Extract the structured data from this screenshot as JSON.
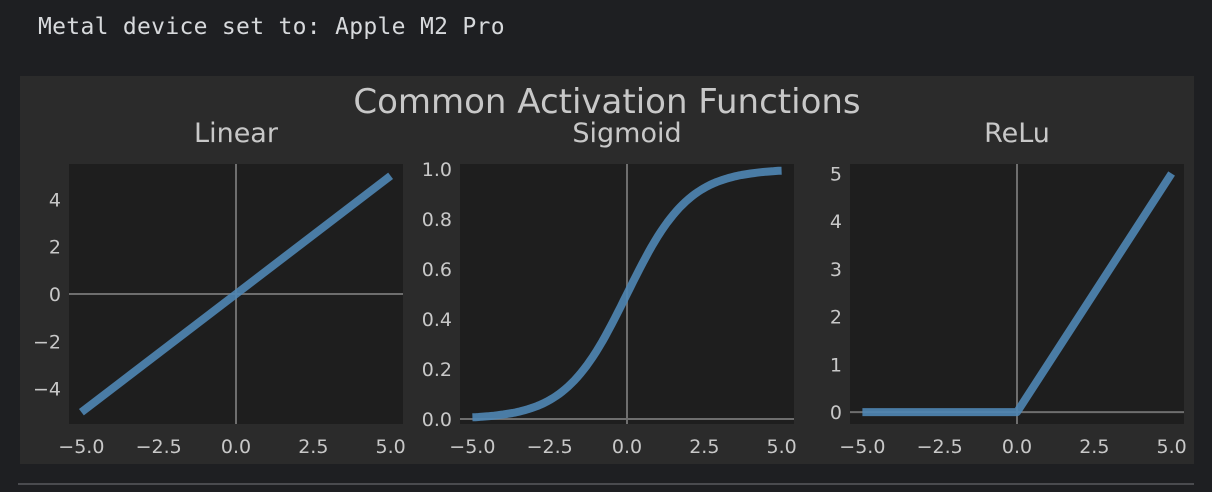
{
  "console": {
    "output_line": "Metal device set to: Apple M2 Pro"
  },
  "colors": {
    "page_background": "#1e1f22",
    "figure_background": "#2b2b2b",
    "axes_background": "#1e1e1e",
    "line": "#4f86b4",
    "text": "#c8c8c8",
    "reference_line": "#6e6e6e"
  },
  "chart_data": [
    {
      "type": "line",
      "suptitle": "Common Activation Functions",
      "title": "Linear",
      "function": "linear",
      "x": [
        -5.0,
        5.0
      ],
      "y": [
        -5.0,
        5.0
      ],
      "xlim": [
        -5.4,
        5.4
      ],
      "ylim": [
        -5.5,
        5.5
      ],
      "xticks": [
        -5.0,
        -2.5,
        0.0,
        2.5,
        5.0
      ],
      "xtick_labels": [
        "−5.0",
        "−2.5",
        "0.0",
        "2.5",
        "5.0"
      ],
      "yticks": [
        -4,
        -2,
        0,
        2,
        4
      ],
      "ytick_labels": [
        "−4",
        "−2",
        "0",
        "2",
        "4"
      ],
      "reference_lines": {
        "x0": true,
        "y0": true
      }
    },
    {
      "type": "line",
      "title": "Sigmoid",
      "function": "sigmoid",
      "x": [
        -5.0,
        -4.0,
        -3.0,
        -2.0,
        -1.0,
        0.0,
        1.0,
        2.0,
        3.0,
        4.0,
        5.0
      ],
      "y": [
        0.007,
        0.018,
        0.047,
        0.119,
        0.269,
        0.5,
        0.731,
        0.881,
        0.953,
        0.982,
        0.993
      ],
      "xlim": [
        -5.4,
        5.4
      ],
      "ylim": [
        -0.02,
        1.02
      ],
      "xticks": [
        -5.0,
        -2.5,
        0.0,
        2.5,
        5.0
      ],
      "xtick_labels": [
        "−5.0",
        "−2.5",
        "0.0",
        "2.5",
        "5.0"
      ],
      "yticks": [
        0.0,
        0.2,
        0.4,
        0.6,
        0.8,
        1.0
      ],
      "ytick_labels": [
        "0.0",
        "0.2",
        "0.4",
        "0.6",
        "0.8",
        "1.0"
      ],
      "reference_lines": {
        "x0": true,
        "y0": true
      }
    },
    {
      "type": "line",
      "title": "ReLu",
      "function": "relu",
      "x": [
        -5.0,
        0.0,
        5.0
      ],
      "y": [
        0.0,
        0.0,
        5.0
      ],
      "xlim": [
        -5.4,
        5.4
      ],
      "ylim": [
        -0.25,
        5.2
      ],
      "xticks": [
        -5.0,
        -2.5,
        0.0,
        2.5,
        5.0
      ],
      "xtick_labels": [
        "−5.0",
        "−2.5",
        "0.0",
        "2.5",
        "5.0"
      ],
      "yticks": [
        0,
        1,
        2,
        3,
        4,
        5
      ],
      "ytick_labels": [
        "0",
        "1",
        "2",
        "3",
        "4",
        "5"
      ],
      "reference_lines": {
        "x0": true,
        "y0": true
      }
    }
  ]
}
